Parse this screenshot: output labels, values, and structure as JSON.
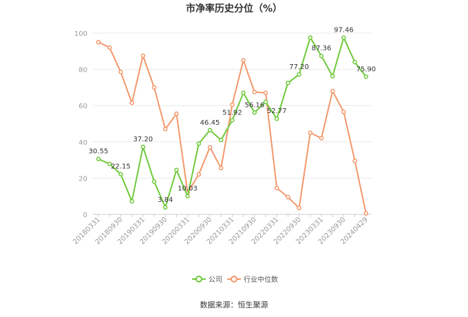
{
  "chart_data": {
    "type": "line",
    "title": "市净率历史分位（%）",
    "xlabel": "",
    "ylabel": "",
    "ylim": [
      0,
      100
    ],
    "yticks": [
      0,
      20,
      40,
      60,
      80,
      100
    ],
    "x_tick_labels": [
      "20180331",
      "20180930",
      "20190331",
      "20190930",
      "20200331",
      "20200930",
      "20210331",
      "20210930",
      "20220331",
      "20220930",
      "20230331",
      "20230930",
      "20240429"
    ],
    "grid": true,
    "legend_position": "bottom",
    "series": [
      {
        "name": "公司",
        "color": "#6dc939",
        "values": [
          30.55,
          27.8,
          22.15,
          7.2,
          37.2,
          18.1,
          3.84,
          24.5,
          10.03,
          39.0,
          46.45,
          41.0,
          51.92,
          67.0,
          56.16,
          62.0,
          52.77,
          72.5,
          77.2,
          97.5,
          87.36,
          76.2,
          97.46,
          84.0,
          75.9
        ],
        "data_labels": [
          {
            "index": 0,
            "text": "30.55"
          },
          {
            "index": 2,
            "text": "22.15"
          },
          {
            "index": 4,
            "text": "37.20"
          },
          {
            "index": 6,
            "text": "3.84"
          },
          {
            "index": 8,
            "text": "10.03"
          },
          {
            "index": 10,
            "text": "46.45"
          },
          {
            "index": 12,
            "text": "51.92"
          },
          {
            "index": 14,
            "text": "56.16"
          },
          {
            "index": 16,
            "text": "52.77"
          },
          {
            "index": 18,
            "text": "77.20"
          },
          {
            "index": 20,
            "text": "87.36"
          },
          {
            "index": 22,
            "text": "97.46"
          },
          {
            "index": 24,
            "text": "75.90"
          }
        ]
      },
      {
        "name": "行业中位数",
        "color": "#f4966a",
        "values": [
          95.0,
          92.0,
          78.5,
          61.5,
          87.5,
          70.0,
          47.0,
          55.5,
          12.0,
          22.0,
          37.0,
          25.5,
          60.5,
          85.0,
          67.5,
          67.0,
          14.5,
          9.5,
          3.5,
          45.0,
          42.0,
          68.0,
          56.5,
          29.5,
          0.5
        ]
      }
    ]
  },
  "footer": {
    "source": "数据来源：恒生聚源"
  }
}
